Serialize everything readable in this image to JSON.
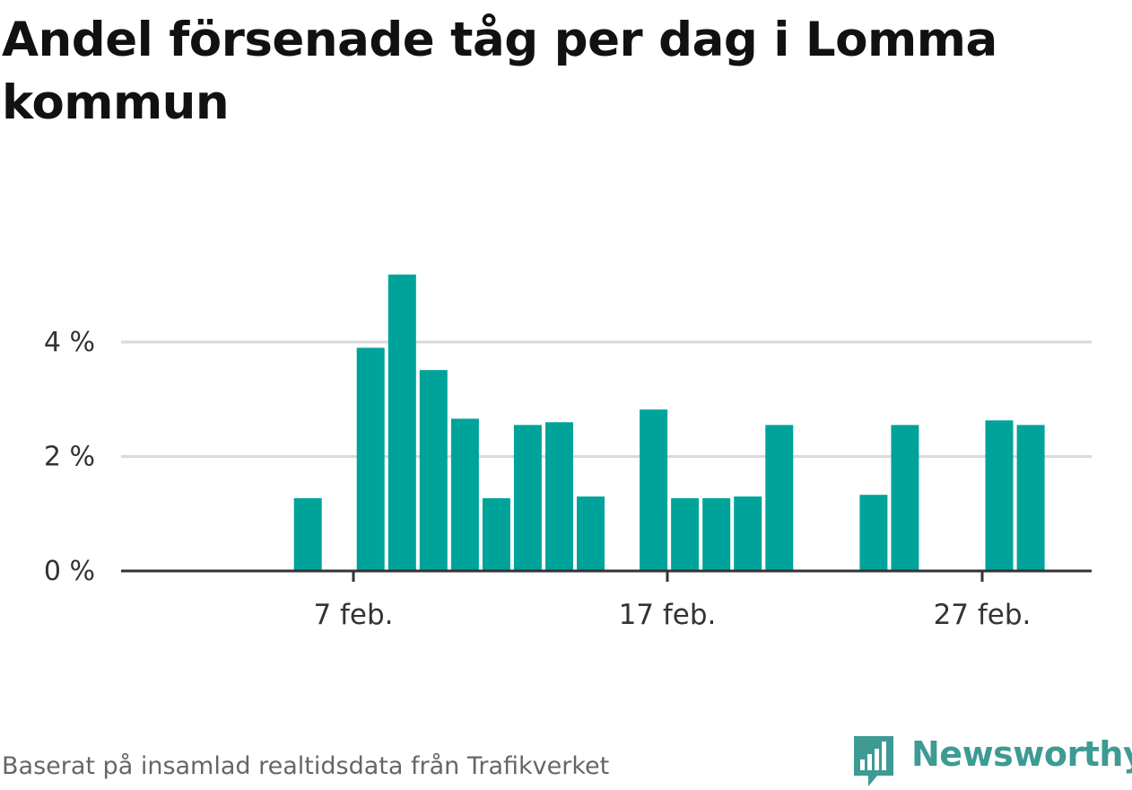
{
  "title": "Andel försenade tåg per dag i Lomma kommun",
  "source": "Baserat på insamlad realtidsdata från Trafikverket",
  "brand": {
    "name": "Newsworthy",
    "color": "#3d9b93",
    "icon": "newsworthy-logo-icon"
  },
  "colors": {
    "bar": "#00a39a",
    "grid": "#d9d9d9",
    "axis": "#333333",
    "label": "#333333"
  },
  "chart_data": {
    "type": "bar",
    "title": "Andel försenade tåg per dag i Lomma kommun",
    "xlabel": "",
    "ylabel": "",
    "x_start": "2021-02-01",
    "x_end": "2021-02-28",
    "x_ticks": [
      {
        "date": "2021-02-07",
        "label": "7 feb."
      },
      {
        "date": "2021-02-17",
        "label": "17 feb."
      },
      {
        "date": "2021-02-27",
        "label": "27 feb."
      }
    ],
    "y_ticks": [
      {
        "value": 0,
        "label": "0 %"
      },
      {
        "value": 2,
        "label": "2 %"
      },
      {
        "value": 4,
        "label": "4 %"
      }
    ],
    "ylim": [
      0,
      5.4
    ],
    "grid": true,
    "legend": "none",
    "series": [
      {
        "name": "",
        "values": [
          {
            "date": "2021-02-05",
            "value": 1.27
          },
          {
            "date": "2021-02-07",
            "value": 3.9
          },
          {
            "date": "2021-02-08",
            "value": 5.18
          },
          {
            "date": "2021-02-09",
            "value": 3.51
          },
          {
            "date": "2021-02-10",
            "value": 2.66
          },
          {
            "date": "2021-02-11",
            "value": 1.27
          },
          {
            "date": "2021-02-12",
            "value": 2.55
          },
          {
            "date": "2021-02-13",
            "value": 2.6
          },
          {
            "date": "2021-02-14",
            "value": 1.3
          },
          {
            "date": "2021-02-16",
            "value": 2.82
          },
          {
            "date": "2021-02-17",
            "value": 1.27
          },
          {
            "date": "2021-02-18",
            "value": 1.27
          },
          {
            "date": "2021-02-19",
            "value": 1.3
          },
          {
            "date": "2021-02-20",
            "value": 2.55
          },
          {
            "date": "2021-02-23",
            "value": 1.33
          },
          {
            "date": "2021-02-24",
            "value": 2.55
          },
          {
            "date": "2021-02-27",
            "value": 2.63
          },
          {
            "date": "2021-02-28",
            "value": 2.55
          }
        ]
      }
    ]
  }
}
